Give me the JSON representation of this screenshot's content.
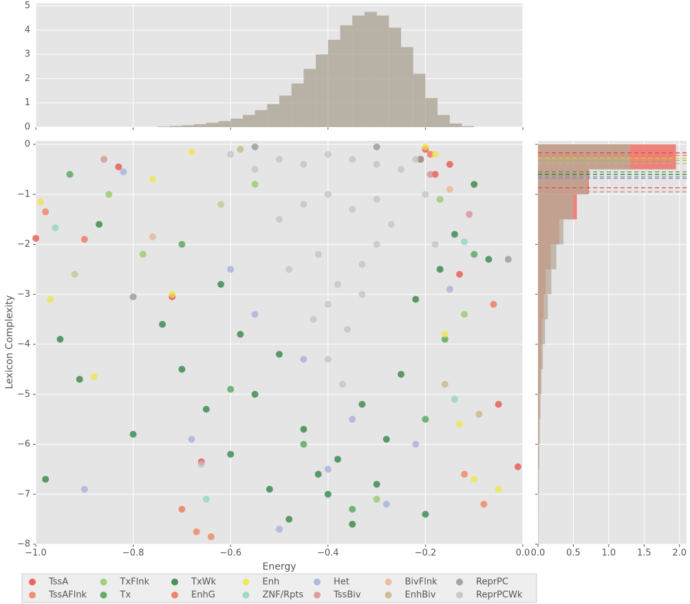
{
  "chart_data": [
    {
      "type": "scatter",
      "xlabel": "Energy",
      "ylabel": "Lexicon Complexity",
      "xlim": [
        -1,
        0
      ],
      "ylim": [
        -8,
        0.07
      ],
      "xticks": [
        {
          "value": -1,
          "label": "−1.0"
        },
        {
          "value": -0.8,
          "label": "−0.8"
        },
        {
          "value": -0.6,
          "label": "−0.6"
        },
        {
          "value": -0.4,
          "label": "−0.4"
        },
        {
          "value": -0.2,
          "label": "−0.2"
        },
        {
          "value": 0,
          "label": "0.0"
        }
      ],
      "yticks": [
        {
          "value": -8,
          "label": "−8"
        },
        {
          "value": -7,
          "label": "−7"
        },
        {
          "value": -6,
          "label": "−6"
        },
        {
          "value": -5,
          "label": "−5"
        },
        {
          "value": -4,
          "label": "−4"
        },
        {
          "value": -3,
          "label": "−3"
        },
        {
          "value": -2,
          "label": "−2"
        },
        {
          "value": -1,
          "label": "−1"
        },
        0
      ],
      "grid": true,
      "legend": "bottom",
      "series": [
        {
          "name": "TssA",
          "color": "#e8453c",
          "x": [
            -1.0,
            -0.83,
            -0.72,
            -0.66,
            -0.2,
            -0.15,
            -0.13,
            -0.05,
            -0.01,
            -0.18
          ],
          "y": [
            -1.88,
            -0.45,
            -3.05,
            -6.35,
            -0.1,
            -0.4,
            -2.6,
            -5.2,
            -6.45,
            -0.6
          ]
        },
        {
          "name": "TssAFlnk",
          "color": "#f07850",
          "x": [
            -0.98,
            -0.67,
            -0.64,
            -0.12,
            -0.08,
            -0.21
          ],
          "y": [
            -1.35,
            -7.75,
            -7.85,
            -6.6,
            -7.2,
            -0.3
          ]
        },
        {
          "name": "TxFlnk",
          "color": "#8bc85a",
          "x": [
            -0.85,
            -0.78,
            -0.55,
            -0.3,
            -0.17,
            -0.12
          ],
          "y": [
            -1.0,
            -2.2,
            -0.8,
            -7.1,
            -1.1,
            -3.4
          ]
        },
        {
          "name": "Tx",
          "color": "#3d9e4a",
          "x": [
            -0.93,
            -0.7,
            -0.6,
            -0.45,
            -0.35,
            -0.2,
            -0.16,
            -0.1
          ],
          "y": [
            -0.6,
            -2.0,
            -4.9,
            -6.0,
            -7.3,
            -5.5,
            -3.9,
            -2.2
          ]
        },
        {
          "name": "TxWk",
          "color": "#1c7a32",
          "x": [
            -0.98,
            -0.91,
            -0.87,
            -0.8,
            -0.74,
            -0.7,
            -0.65,
            -0.6,
            -0.58,
            -0.55,
            -0.52,
            -0.5,
            -0.48,
            -0.45,
            -0.42,
            -0.4,
            -0.38,
            -0.35,
            -0.33,
            -0.3,
            -0.28,
            -0.25,
            -0.22,
            -0.2,
            -0.17,
            -0.14,
            -0.1,
            -0.07,
            -0.95,
            -0.62
          ],
          "y": [
            -6.7,
            -4.7,
            -1.6,
            -5.8,
            -3.6,
            -4.5,
            -5.3,
            -6.2,
            -3.8,
            -5.0,
            -6.9,
            -4.2,
            -7.5,
            -5.7,
            -6.6,
            -7.0,
            -6.3,
            -7.6,
            -5.2,
            -6.8,
            -5.9,
            -4.6,
            -3.1,
            -7.4,
            -2.5,
            -1.8,
            -0.8,
            -2.3,
            -3.9,
            -2.8
          ]
        },
        {
          "name": "EnhG",
          "color": "#ee6a48",
          "x": [
            -0.9,
            -0.7,
            -0.19,
            -0.06
          ],
          "y": [
            -1.9,
            -7.3,
            -0.2,
            -3.2
          ]
        },
        {
          "name": "Enh",
          "color": "#f2e640",
          "x": [
            -0.99,
            -0.97,
            -0.92,
            -0.88,
            -0.76,
            -0.68,
            -0.62,
            -0.2,
            -0.16,
            -0.13,
            -0.1,
            -0.05,
            -0.18,
            -0.72
          ],
          "y": [
            -1.15,
            -3.1,
            -2.6,
            -4.65,
            -0.7,
            -0.15,
            -1.2,
            -0.05,
            -3.8,
            -5.6,
            -6.7,
            -6.9,
            -0.2,
            -3.0
          ]
        },
        {
          "name": "ZNF/Rpts",
          "color": "#88d4bc",
          "x": [
            -0.96,
            -0.65,
            -0.12,
            -0.14
          ],
          "y": [
            -1.67,
            -7.1,
            -1.95,
            -5.1
          ]
        },
        {
          "name": "Het",
          "color": "#a0aadd",
          "x": [
            -0.9,
            -0.82,
            -0.68,
            -0.6,
            -0.5,
            -0.45,
            -0.4,
            -0.35,
            -0.28,
            -0.22,
            -0.15,
            -0.55
          ],
          "y": [
            -6.9,
            -0.55,
            -5.9,
            -2.5,
            -7.7,
            -4.3,
            -6.5,
            -5.5,
            -7.2,
            -6.0,
            -2.9,
            -3.4
          ]
        },
        {
          "name": "TssBiv",
          "color": "#d58a8a",
          "x": [
            -0.86,
            -0.19,
            -0.11
          ],
          "y": [
            -0.3,
            -0.6,
            -1.4
          ]
        },
        {
          "name": "BivFlnk",
          "color": "#e8b090",
          "x": [
            -0.76,
            -0.15
          ],
          "y": [
            -1.85,
            -0.9
          ]
        },
        {
          "name": "EnhBiv",
          "color": "#c4b478",
          "x": [
            -0.58,
            -0.16,
            -0.09
          ],
          "y": [
            -0.1,
            -4.8,
            -5.4
          ]
        },
        {
          "name": "ReprPC",
          "color": "#909090",
          "x": [
            -0.8,
            -0.55,
            -0.3,
            -0.21,
            -0.03
          ],
          "y": [
            -3.05,
            -0.05,
            -0.05,
            -0.3,
            -2.3
          ]
        },
        {
          "name": "ReprPCWk",
          "color": "#c0c0c0",
          "x": [
            -0.6,
            -0.55,
            -0.5,
            -0.45,
            -0.4,
            -0.35,
            -0.3,
            -0.25,
            -0.22,
            -0.5,
            -0.45,
            -0.4,
            -0.35,
            -0.3,
            -0.27,
            -0.48,
            -0.42,
            -0.38,
            -0.33,
            -0.3,
            -0.43,
            -0.4,
            -0.36,
            -0.33,
            -0.4,
            -0.37,
            -0.62,
            -0.2,
            -0.18,
            -0.66,
            -0.92
          ],
          "y": [
            -0.2,
            -0.5,
            -0.3,
            -0.4,
            -0.2,
            -0.3,
            -0.4,
            -0.5,
            -0.3,
            -1.5,
            -1.2,
            -1.0,
            -1.3,
            -1.1,
            -1.6,
            -2.5,
            -2.2,
            -2.8,
            -2.4,
            -2.0,
            -3.5,
            -3.2,
            -3.7,
            -3.0,
            -4.3,
            -4.8,
            -1.2,
            -1.0,
            -2.0,
            -6.4,
            -2.6
          ]
        }
      ]
    },
    {
      "type": "histogram",
      "orientation": "vertical",
      "ylim": [
        0,
        5.1
      ],
      "yticks": [
        0,
        1,
        2,
        3,
        4,
        5
      ],
      "series": [
        {
          "color": "#a89f8f",
          "bins": [
            -0.75,
            -0.725,
            -0.7,
            -0.675,
            -0.65,
            -0.625,
            -0.6,
            -0.575,
            -0.55,
            -0.525,
            -0.5,
            -0.475,
            -0.45,
            -0.425,
            -0.4,
            -0.375,
            -0.35,
            -0.325,
            -0.3,
            -0.275,
            -0.25,
            -0.225,
            -0.2,
            -0.175,
            -0.15,
            -0.125,
            -0.1
          ],
          "counts": [
            0.02,
            0.05,
            0.08,
            0.12,
            0.18,
            0.25,
            0.35,
            0.5,
            0.7,
            0.95,
            1.3,
            1.8,
            2.4,
            3.0,
            3.6,
            4.2,
            4.6,
            4.75,
            4.6,
            4.1,
            3.3,
            2.2,
            1.2,
            0.5,
            0.15,
            0.04
          ]
        }
      ]
    },
    {
      "type": "histogram",
      "orientation": "horizontal",
      "xlim": [
        0,
        2.1
      ],
      "xticks": [
        {
          "value": 0,
          "label": "0.0"
        },
        0.5,
        {
          "value": 1,
          "label": "1.0"
        },
        1.5,
        {
          "value": 2,
          "label": "2.0"
        }
      ],
      "series": [
        {
          "color": "#f06058",
          "bins": [
            -8,
            -7.5,
            -7,
            -6.5,
            -6,
            -5.5,
            -5,
            -4.5,
            -4,
            -3.5,
            -3,
            -2.5,
            -2,
            -1.5,
            -1,
            -0.5,
            0
          ],
          "counts": [
            0.002,
            0.003,
            0.005,
            0.008,
            0.012,
            0.02,
            0.03,
            0.045,
            0.06,
            0.08,
            0.11,
            0.18,
            0.3,
            0.55,
            0.72,
            1.95
          ]
        },
        {
          "color": "#b4ab98",
          "bins": [
            -8,
            -7.5,
            -7,
            -6.5,
            -6,
            -5.5,
            -5,
            -4.5,
            -4,
            -3.5,
            -3,
            -2.5,
            -2,
            -1.5,
            -1,
            -0.5,
            0
          ],
          "counts": [
            0.005,
            0.008,
            0.012,
            0.018,
            0.025,
            0.035,
            0.05,
            0.07,
            0.1,
            0.14,
            0.19,
            0.26,
            0.36,
            0.5,
            0.7,
            1.3
          ]
        }
      ],
      "hlines": [
        {
          "value": -0.17,
          "color": "#e8453c"
        },
        {
          "value": -0.22,
          "color": "#f07850"
        },
        {
          "value": -0.28,
          "color": "#e0cc20"
        },
        {
          "value": -0.32,
          "color": "#8bc85a"
        },
        {
          "value": -0.38,
          "color": "#c4b478"
        },
        {
          "value": -0.55,
          "color": "#3d9e4a"
        },
        {
          "value": -0.6,
          "color": "#1c7a32"
        },
        {
          "value": -0.65,
          "color": "#909090"
        },
        {
          "value": -0.68,
          "color": "#8090d0"
        },
        {
          "value": -0.87,
          "color": "#e8453c"
        },
        {
          "value": -0.95,
          "color": "#d58a8a"
        }
      ]
    }
  ]
}
